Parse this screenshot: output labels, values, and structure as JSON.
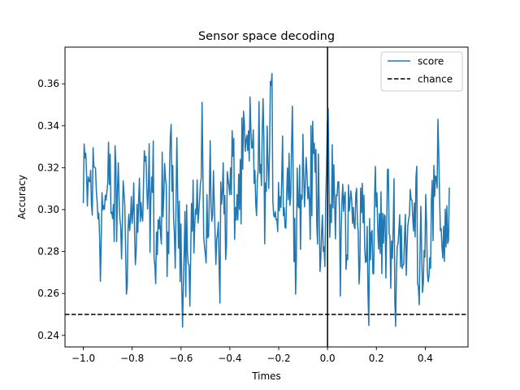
{
  "chart_data": {
    "type": "line",
    "title": "Sensor space decoding",
    "xlabel": "Times",
    "ylabel": "Accuracy",
    "xlim": [
      -1.075,
      0.575
    ],
    "ylim": [
      0.2345,
      0.3775
    ],
    "xticks": [
      -1.0,
      -0.8,
      -0.6,
      -0.4,
      -0.2,
      0.0,
      0.2,
      0.4
    ],
    "xtick_labels": [
      "−1.0",
      "−0.8",
      "−0.6",
      "−0.4",
      "−0.2",
      "0.0",
      "0.2",
      "0.4"
    ],
    "yticks": [
      0.24,
      0.26,
      0.28,
      0.3,
      0.32,
      0.34,
      0.36
    ],
    "ytick_labels": [
      "0.24",
      "0.26",
      "0.28",
      "0.30",
      "0.32",
      "0.34",
      "0.36"
    ],
    "grid": false,
    "legend_position": "top-right",
    "series": [
      {
        "name": "score",
        "color": "#1f77b4",
        "style": "solid",
        "x_range": [
          -1.0,
          0.5
        ],
        "x_step": 0.00333,
        "y_extremes": [
          0.24,
          0.3715
        ],
        "anchors_x": [
          -1.0,
          -0.96,
          -0.9,
          -0.8,
          -0.7,
          -0.6,
          -0.5,
          -0.4,
          -0.3,
          -0.2,
          -0.1,
          -0.02,
          0.0,
          0.05,
          0.1,
          0.2,
          0.3,
          0.4,
          0.5
        ],
        "anchors_y": [
          0.3,
          0.312,
          0.3,
          0.296,
          0.296,
          0.296,
          0.298,
          0.304,
          0.317,
          0.318,
          0.318,
          0.308,
          0.297,
          0.297,
          0.294,
          0.287,
          0.289,
          0.296,
          0.298
        ]
      },
      {
        "name": "chance",
        "color": "#000000",
        "style": "dashed",
        "y": 0.25
      }
    ],
    "annotations": [
      {
        "type": "vline",
        "x": 0.0,
        "color": "#000000"
      }
    ]
  }
}
